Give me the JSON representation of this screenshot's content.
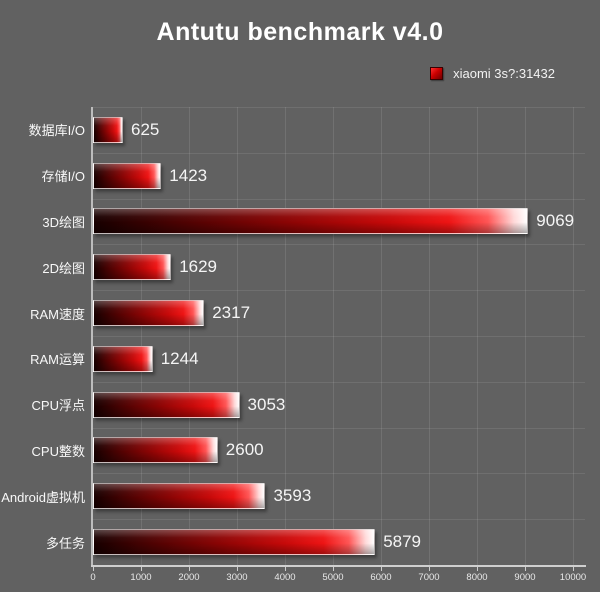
{
  "title": "Antutu benchmark v4.0",
  "legend": {
    "label": "xiaomi 3s?:31432",
    "swatch_color": "#cc0000"
  },
  "chart_data": {
    "type": "bar",
    "orientation": "horizontal",
    "title": "Antutu benchmark v4.0",
    "legend_entries": [
      "xiaomi 3s?:31432"
    ],
    "legend_position": "top-right",
    "categories": [
      "数据库I/O",
      "存储I/O",
      "3D绘图",
      "2D绘图",
      "RAM速度",
      "RAM运算",
      "CPU浮点",
      "CPU整数",
      "Android虚拟机",
      "多任务"
    ],
    "values": [
      625,
      1423,
      9069,
      1629,
      2317,
      1244,
      3053,
      2600,
      3593,
      5879
    ],
    "xlim": [
      0,
      10000
    ],
    "x_ticks": [
      0,
      1000,
      2000,
      3000,
      4000,
      5000,
      6000,
      7000,
      8000,
      9000,
      10000
    ],
    "grid": true,
    "colors": {
      "background": "#616161",
      "gridline": "#707070",
      "axis": "#c8c8c8",
      "text": "#ffffff",
      "bar_dark": "#180000",
      "bar_mid": "#c70909",
      "bar_bright": "#ee1414",
      "bar_tip": "#ffffff"
    }
  }
}
